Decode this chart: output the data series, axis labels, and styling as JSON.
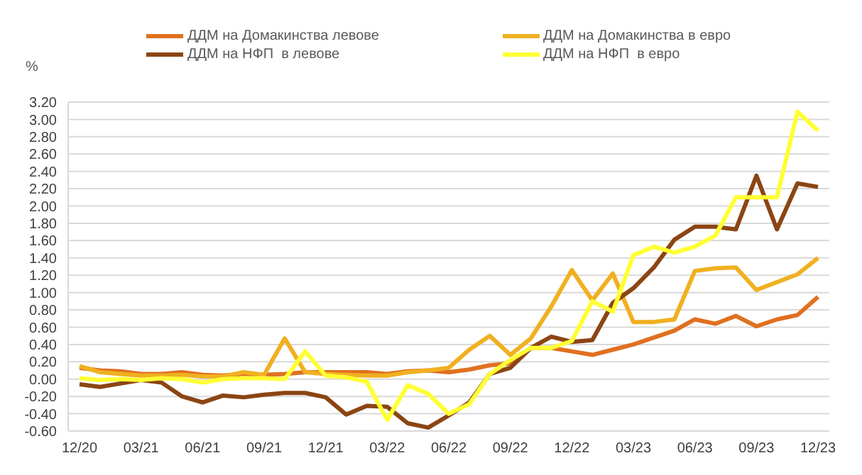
{
  "chart_data": {
    "type": "line",
    "ylabel": "%",
    "categories": [
      "12/20",
      null,
      null,
      "03/21",
      null,
      null,
      "06/21",
      null,
      null,
      "09/21",
      null,
      null,
      "12/21",
      null,
      null,
      "03/22",
      null,
      null,
      "06/22",
      null,
      null,
      "09/22",
      null,
      null,
      "12/22",
      null,
      null,
      "03/23",
      null,
      null,
      "06/23",
      null,
      null,
      "09/23",
      null,
      null,
      "12/23"
    ],
    "series": [
      {
        "name": "ДДМ на Домакинства левове",
        "color": "#e07020",
        "values": [
          0.13,
          0.1,
          0.09,
          0.06,
          0.06,
          0.08,
          0.05,
          0.04,
          0.06,
          0.05,
          0.06,
          0.08,
          0.08,
          0.08,
          0.08,
          0.06,
          0.09,
          0.1,
          0.08,
          0.11,
          0.16,
          0.18,
          0.36,
          0.36,
          0.32,
          0.28,
          0.34,
          0.4,
          0.48,
          0.56,
          0.69,
          0.64,
          0.73,
          0.61,
          0.69,
          0.74,
          0.95
        ]
      },
      {
        "name": "ДДМ на Домакинства в евро",
        "color": "#f0b020",
        "values": [
          0.15,
          0.08,
          0.06,
          0.04,
          0.04,
          0.05,
          0.03,
          0.03,
          0.08,
          0.05,
          0.47,
          0.08,
          0.06,
          0.05,
          0.04,
          0.04,
          0.08,
          0.1,
          0.13,
          0.34,
          0.5,
          0.28,
          0.47,
          0.84,
          1.26,
          0.91,
          1.22,
          0.66,
          0.66,
          0.69,
          1.25,
          1.28,
          1.29,
          1.03,
          1.12,
          1.21,
          1.4
        ]
      },
      {
        "name": "ДДМ на НФП  в левове",
        "color": "#8b4513",
        "values": [
          -0.06,
          -0.09,
          -0.05,
          -0.01,
          -0.04,
          -0.2,
          -0.27,
          -0.19,
          -0.21,
          -0.18,
          -0.16,
          -0.16,
          -0.21,
          -0.41,
          -0.31,
          -0.32,
          -0.51,
          -0.56,
          -0.42,
          -0.27,
          0.06,
          0.13,
          0.36,
          0.49,
          0.43,
          0.45,
          0.88,
          1.05,
          1.29,
          1.61,
          1.76,
          1.76,
          1.73,
          2.35,
          1.73,
          2.26,
          2.22
        ]
      },
      {
        "name": "ДДМ на НФП  в евро",
        "color": "#ffff33",
        "values": [
          0.01,
          -0.01,
          0.0,
          -0.01,
          0.01,
          0.0,
          -0.04,
          0.0,
          0.01,
          0.01,
          0.0,
          0.32,
          0.04,
          0.02,
          -0.03,
          -0.47,
          -0.07,
          -0.17,
          -0.4,
          -0.29,
          0.06,
          0.22,
          0.36,
          0.36,
          0.44,
          0.9,
          0.78,
          1.43,
          1.53,
          1.46,
          1.53,
          1.66,
          2.1,
          2.1,
          2.1,
          3.09,
          2.87
        ]
      }
    ],
    "ylim": [
      -0.6,
      3.2
    ],
    "yticks": [
      {
        "value": -0.6,
        "label": "-0.60"
      },
      {
        "value": -0.4,
        "label": "-0.40"
      },
      {
        "value": -0.2,
        "label": "-0.20"
      },
      {
        "value": 0,
        "label": "0.00"
      },
      {
        "value": 0.2,
        "label": "0.20"
      },
      {
        "value": 0.4,
        "label": "0.40"
      },
      {
        "value": 0.6,
        "label": "0.60"
      },
      {
        "value": 0.8,
        "label": "0.80"
      },
      {
        "value": 1,
        "label": "1.00"
      },
      {
        "value": 1.2,
        "label": "1.20"
      },
      {
        "value": 1.4,
        "label": "1.40"
      },
      {
        "value": 1.6,
        "label": "1.60"
      },
      {
        "value": 1.8,
        "label": "1.80"
      },
      {
        "value": 2,
        "label": "2.00"
      },
      {
        "value": 2.2,
        "label": "2.20"
      },
      {
        "value": 2.4,
        "label": "2.40"
      },
      {
        "value": 2.6,
        "label": "2.60"
      },
      {
        "value": 2.8,
        "label": "2.80"
      },
      {
        "value": 3,
        "label": "3.00"
      },
      {
        "value": 3.2,
        "label": "3.20"
      }
    ],
    "grid": "y",
    "legend": "top",
    "marker": "none",
    "line_style": "solid"
  }
}
